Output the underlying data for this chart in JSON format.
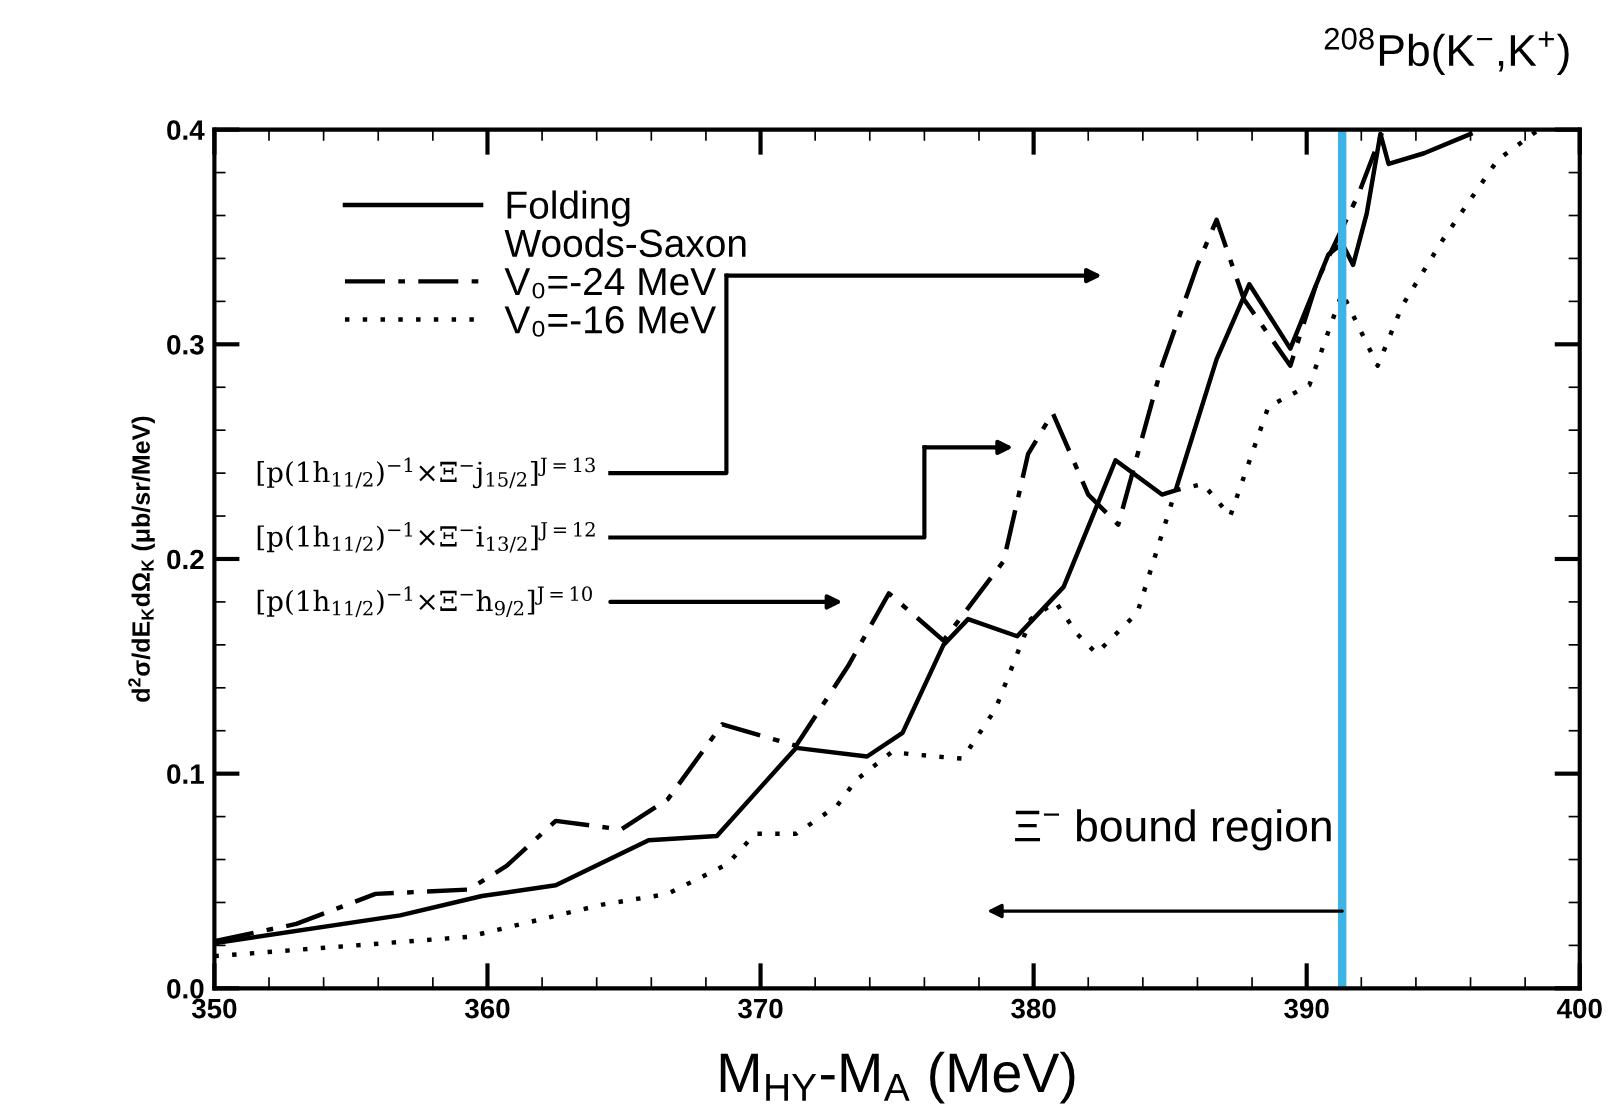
{
  "chart_data": {
    "type": "line",
    "title": "$^{208}$Pb(K$^{−}$,K$^{+}$)",
    "xlabel": "M$_{HY}$-M$_{A}$ (MeV)",
    "ylabel": "d$^{2}$σ/dE$_{K}$dΩ$_{K}$ (μb/sr/MeV)",
    "xlim": [
      350,
      400
    ],
    "xticks": [
      350,
      360,
      370,
      380,
      390,
      400
    ],
    "ylim": [
      0.0,
      0.4
    ],
    "yticks": [
      {
        "value": 0.0,
        "label": "0.0"
      },
      0.1,
      0.2,
      0.3,
      0.4
    ],
    "grid": false,
    "legend": "top left",
    "marker": "none",
    "series": [
      {
        "name": "Folding",
        "color": "#000000",
        "line_style": "solid",
        "x": [
          350.0,
          356.8,
          359.8,
          362.5,
          365.9,
          368.4,
          371.3,
          373.9,
          375.2,
          376.7,
          377.6,
          379.4,
          381.1,
          383.0,
          384.7,
          385.2,
          386.7,
          387.9,
          389.4,
          390.8,
          391.3,
          391.7,
          392.2,
          392.7,
          393.0,
          394.3,
          396.0
        ],
        "values": [
          0.021,
          0.034,
          0.043,
          0.048,
          0.069,
          0.071,
          0.112,
          0.108,
          0.119,
          0.16,
          0.172,
          0.164,
          0.187,
          0.246,
          0.23,
          0.232,
          0.293,
          0.328,
          0.298,
          0.342,
          0.347,
          0.337,
          0.361,
          0.398,
          0.384,
          0.389,
          0.398
        ]
      },
      {
        "name": "V₀=-24 MeV",
        "color": "#000000",
        "line_style": "dashed",
        "x": [
          350.0,
          353.0,
          355.9,
          359.3,
          360.7,
          362.5,
          364.9,
          366.6,
          368.6,
          371.3,
          373.2,
          374.7,
          376.7,
          378.9,
          379.8,
          380.7,
          382.0,
          383.1,
          384.7,
          386.0,
          386.7,
          387.7,
          389.4,
          390.4,
          391.9,
          392.8
        ],
        "values": [
          0.022,
          0.03,
          0.044,
          0.046,
          0.057,
          0.078,
          0.074,
          0.088,
          0.123,
          0.113,
          0.15,
          0.184,
          0.162,
          0.199,
          0.249,
          0.268,
          0.23,
          0.216,
          0.29,
          0.337,
          0.358,
          0.321,
          0.29,
          0.33,
          0.37,
          0.4
        ]
      },
      {
        "name": "V₀=-16 MeV",
        "color": "#000000",
        "line_style": "dotted",
        "x": [
          350.0,
          359.3,
          364.2,
          366.6,
          368.8,
          369.8,
          371.3,
          372.8,
          373.5,
          374.8,
          376.4,
          377.4,
          378.6,
          379.9,
          380.8,
          381.6,
          382.3,
          383.8,
          385.2,
          386.2,
          387.2,
          388.6,
          390.1,
          391.3,
          392.6,
          393.5,
          395.0,
          397.0,
          398.5
        ],
        "values": [
          0.015,
          0.024,
          0.039,
          0.044,
          0.058,
          0.072,
          0.072,
          0.085,
          0.097,
          0.11,
          0.108,
          0.107,
          0.13,
          0.172,
          0.18,
          0.165,
          0.156,
          0.175,
          0.232,
          0.235,
          0.22,
          0.271,
          0.281,
          0.324,
          0.29,
          0.318,
          0.349,
          0.386,
          0.4
        ]
      }
    ],
    "annotations": [
      "Woods-Saxon",
      "[p(1h$_{11/2}$)$^{−1}$×Ξ$^{−}$j$_{15/2}$]$^{J=13}$",
      "[p(1h$_{11/2}$)$^{−1}$×Ξ$^{−}$i$_{13/2}$]$^{J=12}$",
      "[p(1h$_{11/2}$)$^{−1}$×Ξ$^{−}$h$_{9/2}$]$^{J=10}$"
    ],
    "ref_lines": [
      {
        "axis": "x",
        "value": 391.3,
        "label": "Ξ$^{−}$ bound region",
        "color": "#3cb4e6"
      }
    ]
  }
}
